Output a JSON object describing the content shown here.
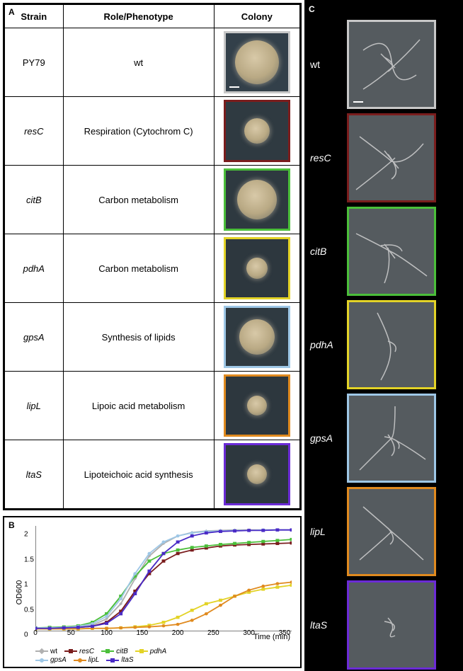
{
  "panel_labels": {
    "a": "A",
    "b": "B",
    "c": "C"
  },
  "table": {
    "headers": {
      "strain": "Strain",
      "role": "Role/Phenotype",
      "colony": "Colony"
    },
    "rows": [
      {
        "strain": "PY79",
        "italic": false,
        "role": "wt",
        "tile": {
          "border": "#c8c8c8",
          "bg": "#33404a",
          "blob_size": 62
        }
      },
      {
        "strain": "resC",
        "italic": true,
        "role": "Respiration (Cytochrom C)",
        "tile": {
          "border": "#7a1d1d",
          "bg": "#2f3a41",
          "blob_size": 36
        }
      },
      {
        "strain": "citB",
        "italic": true,
        "role": "Carbon metabolism",
        "tile": {
          "border": "#4bbf3a",
          "bg": "#2e3940",
          "blob_size": 56
        }
      },
      {
        "strain": "pdhA",
        "italic": true,
        "role": "Carbon metabolism",
        "tile": {
          "border": "#e3d327",
          "bg": "#2d373e",
          "blob_size": 30
        }
      },
      {
        "strain": "gpsA",
        "italic": true,
        "role": "Synthesis of lipids",
        "tile": {
          "border": "#9ec7e6",
          "bg": "#2f3a41",
          "blob_size": 50
        }
      },
      {
        "strain": "lipL",
        "italic": true,
        "role": "Lipoic acid metabolism",
        "tile": {
          "border": "#e08a1f",
          "bg": "#2d373e",
          "blob_size": 28
        }
      },
      {
        "strain": "ltaS",
        "italic": true,
        "role": "Lipoteichoic acid synthesis",
        "tile": {
          "border": "#6b2bd6",
          "bg": "#2d373e",
          "blob_size": 28
        }
      }
    ]
  },
  "chart": {
    "type": "line",
    "xlabel": "Time (min)",
    "ylabel": "OD600",
    "label_fontsize": 11,
    "tick_fontsize": 10,
    "xlim": [
      0,
      360
    ],
    "ylim": [
      0,
      2.1
    ],
    "xticks": [
      0,
      50,
      100,
      150,
      200,
      250,
      300,
      350
    ],
    "yticks": [
      0,
      0.5,
      1,
      1.5,
      2
    ],
    "background_color": "#ffffff",
    "axis_color": "#000000",
    "line_width": 2,
    "marker_size": 5,
    "series": [
      {
        "name": "wt",
        "color": "#b0b0b0",
        "marker": "diamond",
        "x": [
          0,
          20,
          40,
          60,
          80,
          100,
          120,
          140,
          160,
          180,
          200,
          220,
          240,
          260,
          280,
          300,
          320,
          340,
          360
        ],
        "y": [
          0.07,
          0.07,
          0.08,
          0.09,
          0.12,
          0.25,
          0.55,
          1.05,
          1.5,
          1.75,
          1.9,
          1.97,
          2.0,
          2.01,
          2.02,
          2.02,
          2.02,
          2.02,
          2.02
        ]
      },
      {
        "name": "resC",
        "color": "#7a1d1d",
        "marker": "square",
        "x": [
          0,
          20,
          40,
          60,
          80,
          100,
          120,
          140,
          160,
          180,
          200,
          220,
          240,
          260,
          280,
          300,
          320,
          340,
          360
        ],
        "y": [
          0.06,
          0.06,
          0.07,
          0.08,
          0.1,
          0.18,
          0.4,
          0.8,
          1.15,
          1.4,
          1.55,
          1.62,
          1.66,
          1.7,
          1.72,
          1.73,
          1.74,
          1.75,
          1.76
        ]
      },
      {
        "name": "citB",
        "color": "#4bbf3a",
        "marker": "square",
        "x": [
          0,
          20,
          40,
          60,
          80,
          100,
          120,
          140,
          160,
          180,
          200,
          220,
          240,
          260,
          280,
          300,
          320,
          340,
          360
        ],
        "y": [
          0.07,
          0.08,
          0.09,
          0.11,
          0.18,
          0.35,
          0.7,
          1.1,
          1.4,
          1.55,
          1.62,
          1.67,
          1.7,
          1.73,
          1.75,
          1.77,
          1.79,
          1.81,
          1.83
        ]
      },
      {
        "name": "pdhA",
        "color": "#e3d327",
        "marker": "square",
        "x": [
          0,
          20,
          40,
          60,
          80,
          100,
          120,
          140,
          160,
          180,
          200,
          220,
          240,
          260,
          280,
          300,
          320,
          340,
          360
        ],
        "y": [
          0.05,
          0.05,
          0.05,
          0.05,
          0.06,
          0.06,
          0.07,
          0.09,
          0.12,
          0.18,
          0.28,
          0.42,
          0.55,
          0.62,
          0.7,
          0.78,
          0.84,
          0.88,
          0.92
        ]
      },
      {
        "name": "gpsA",
        "color": "#9ec7e6",
        "marker": "circle",
        "x": [
          0,
          20,
          40,
          60,
          80,
          100,
          120,
          140,
          160,
          180,
          200,
          220,
          240,
          260,
          280,
          300,
          320,
          340,
          360
        ],
        "y": [
          0.07,
          0.07,
          0.08,
          0.1,
          0.15,
          0.3,
          0.65,
          1.15,
          1.55,
          1.78,
          1.9,
          1.96,
          1.99,
          2.0,
          2.01,
          2.01,
          2.02,
          2.02,
          2.02
        ]
      },
      {
        "name": "lipL",
        "color": "#e08a1f",
        "marker": "circle",
        "x": [
          0,
          20,
          40,
          60,
          80,
          100,
          120,
          140,
          160,
          180,
          200,
          220,
          240,
          260,
          280,
          300,
          320,
          340,
          360
        ],
        "y": [
          0.05,
          0.05,
          0.05,
          0.05,
          0.06,
          0.06,
          0.07,
          0.08,
          0.09,
          0.11,
          0.14,
          0.22,
          0.35,
          0.52,
          0.7,
          0.82,
          0.9,
          0.95,
          0.98
        ]
      },
      {
        "name": "ltaS",
        "color": "#4a2bc6",
        "marker": "square",
        "x": [
          0,
          20,
          40,
          60,
          80,
          100,
          120,
          140,
          160,
          180,
          200,
          220,
          240,
          260,
          280,
          300,
          320,
          340,
          360
        ],
        "y": [
          0.06,
          0.06,
          0.07,
          0.08,
          0.1,
          0.16,
          0.35,
          0.75,
          1.2,
          1.55,
          1.78,
          1.9,
          1.96,
          1.99,
          2.0,
          2.01,
          2.01,
          2.02,
          2.02
        ]
      }
    ],
    "legend": {
      "row1": [
        "wt",
        "resC",
        "citB",
        "pdhA"
      ],
      "row2": [
        "gpsA",
        "lipL",
        "ltaS"
      ]
    }
  },
  "panel_c": {
    "bg": "#000000",
    "tile_bg": "#555b5f",
    "stroke": "#d8d8d8",
    "items": [
      {
        "label": "wt",
        "italic": false,
        "border": "#c8c8c8"
      },
      {
        "label": "resC",
        "italic": true,
        "border": "#7a1d1d"
      },
      {
        "label": "citB",
        "italic": true,
        "border": "#4bbf3a"
      },
      {
        "label": "pdhA",
        "italic": true,
        "border": "#e3d327"
      },
      {
        "label": "gpsA",
        "italic": true,
        "border": "#9ec7e6"
      },
      {
        "label": "lipL",
        "italic": true,
        "border": "#e08a1f"
      },
      {
        "label": "ltaS",
        "italic": true,
        "border": "#6b2bd6"
      }
    ]
  }
}
